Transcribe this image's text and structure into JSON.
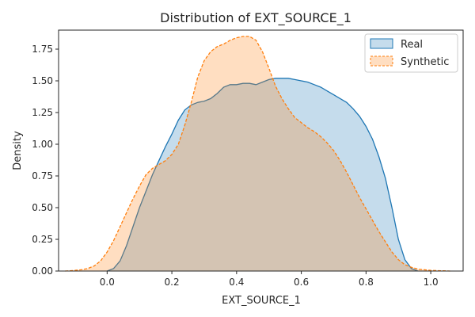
{
  "chart_data": {
    "type": "area",
    "title": "Distribution of EXT_SOURCE_1",
    "xlabel": "EXT_SOURCE_1",
    "ylabel": "Density",
    "xlim": [
      -0.15,
      1.1
    ],
    "ylim": [
      0,
      1.9
    ],
    "xticks": [
      0.0,
      0.2,
      0.4,
      0.6,
      0.8,
      1.0
    ],
    "xtick_labels": [
      "0.0",
      "0.2",
      "0.4",
      "0.6",
      "0.8",
      "1.0"
    ],
    "yticks": [
      0.0,
      0.25,
      0.5,
      0.75,
      1.0,
      1.25,
      1.5,
      1.75
    ],
    "ytick_labels": [
      "0.00",
      "0.25",
      "0.50",
      "0.75",
      "1.00",
      "1.25",
      "1.50",
      "1.75"
    ],
    "grid": false,
    "legend_position": "top-right",
    "series": [
      {
        "name": "Real",
        "style": "solid",
        "color": "#1f77b4",
        "x": [
          0.0,
          0.02,
          0.04,
          0.06,
          0.08,
          0.1,
          0.12,
          0.14,
          0.16,
          0.18,
          0.2,
          0.22,
          0.24,
          0.26,
          0.28,
          0.3,
          0.32,
          0.34,
          0.36,
          0.38,
          0.4,
          0.42,
          0.44,
          0.46,
          0.48,
          0.5,
          0.52,
          0.54,
          0.56,
          0.58,
          0.6,
          0.62,
          0.64,
          0.66,
          0.68,
          0.7,
          0.72,
          0.74,
          0.76,
          0.78,
          0.8,
          0.82,
          0.84,
          0.86,
          0.88,
          0.9,
          0.92,
          0.94,
          0.96
        ],
        "y": [
          0.0,
          0.02,
          0.08,
          0.2,
          0.35,
          0.5,
          0.63,
          0.76,
          0.87,
          0.98,
          1.08,
          1.19,
          1.27,
          1.31,
          1.33,
          1.34,
          1.36,
          1.4,
          1.45,
          1.47,
          1.47,
          1.48,
          1.48,
          1.47,
          1.49,
          1.51,
          1.52,
          1.52,
          1.52,
          1.51,
          1.5,
          1.49,
          1.47,
          1.45,
          1.42,
          1.39,
          1.36,
          1.33,
          1.28,
          1.22,
          1.14,
          1.04,
          0.9,
          0.73,
          0.5,
          0.25,
          0.09,
          0.02,
          0.0
        ]
      },
      {
        "name": "Synthetic",
        "style": "dashed",
        "color": "#ff7f0e",
        "x": [
          -0.13,
          -0.1,
          -0.08,
          -0.06,
          -0.04,
          -0.02,
          0.0,
          0.02,
          0.04,
          0.06,
          0.08,
          0.1,
          0.12,
          0.14,
          0.16,
          0.18,
          0.2,
          0.22,
          0.24,
          0.26,
          0.28,
          0.3,
          0.32,
          0.34,
          0.36,
          0.38,
          0.4,
          0.42,
          0.44,
          0.46,
          0.48,
          0.5,
          0.52,
          0.54,
          0.56,
          0.58,
          0.6,
          0.62,
          0.64,
          0.66,
          0.68,
          0.7,
          0.72,
          0.74,
          0.76,
          0.78,
          0.8,
          0.82,
          0.84,
          0.86,
          0.88,
          0.9,
          0.92,
          0.94,
          0.96,
          1.0,
          1.06
        ],
        "y": [
          0.0,
          0.005,
          0.01,
          0.02,
          0.04,
          0.08,
          0.15,
          0.24,
          0.35,
          0.46,
          0.57,
          0.67,
          0.76,
          0.81,
          0.84,
          0.87,
          0.92,
          1.0,
          1.15,
          1.33,
          1.53,
          1.66,
          1.73,
          1.77,
          1.79,
          1.82,
          1.84,
          1.85,
          1.85,
          1.82,
          1.73,
          1.6,
          1.46,
          1.36,
          1.28,
          1.21,
          1.17,
          1.13,
          1.1,
          1.06,
          1.01,
          0.95,
          0.87,
          0.78,
          0.68,
          0.58,
          0.49,
          0.4,
          0.31,
          0.23,
          0.15,
          0.09,
          0.05,
          0.03,
          0.015,
          0.005,
          0.0
        ]
      }
    ]
  }
}
